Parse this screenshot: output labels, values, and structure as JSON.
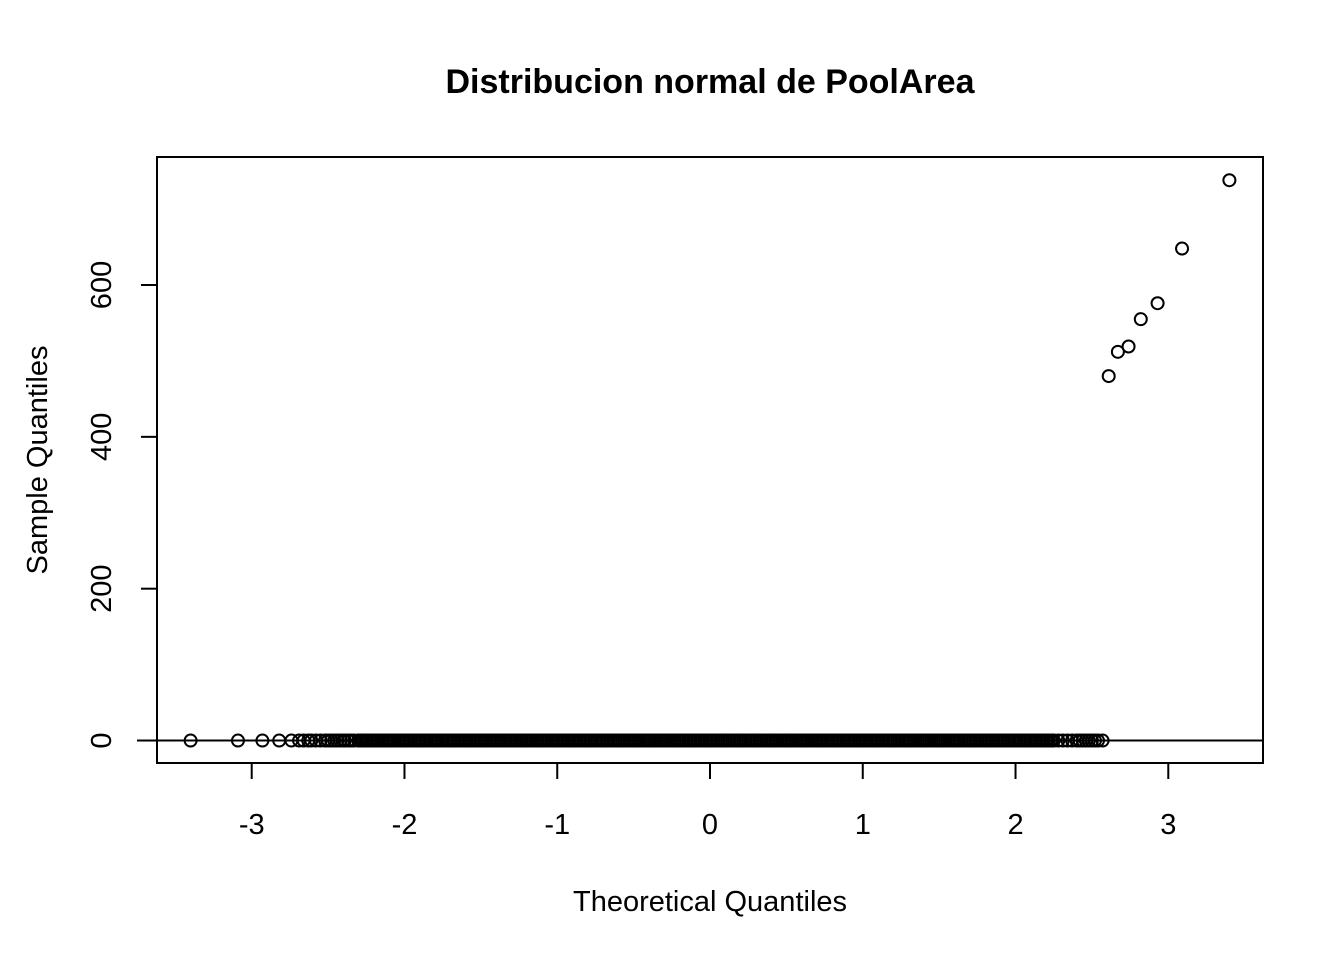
{
  "chart_data": {
    "type": "scatter",
    "title": "Distribucion normal de PoolArea",
    "xlabel": "Theoretical Quantiles",
    "ylabel": "Sample Quantiles",
    "xlim": [
      -3.62,
      3.62
    ],
    "ylim": [
      -29.6,
      768.6
    ],
    "xticks": [
      -3,
      -2,
      -1,
      0,
      1,
      2,
      3
    ],
    "yticks": [
      0,
      200,
      400,
      600
    ],
    "grid": false,
    "reference_line": {
      "intercept": 0,
      "slope": 0
    },
    "series": [
      {
        "zero_points_x": [
          -3.4,
          -3.09,
          -2.93,
          -2.82,
          -2.74,
          -2.69,
          -2.66,
          -2.63,
          -2.61,
          -2.58,
          -2.55,
          -2.52,
          -2.5,
          -2.48,
          -2.46,
          -2.44,
          -2.42,
          -2.4,
          -2.39,
          -2.37,
          -2.35,
          -2.33,
          -2.3,
          -2.25,
          -2.2,
          -2.1,
          -2.0,
          -1.9,
          -1.8,
          -1.7,
          -1.6,
          -1.5,
          -1.4,
          -1.3,
          -1.2,
          -1.1,
          -1.0,
          -0.9,
          -0.8,
          -0.7,
          -0.6,
          -0.5,
          -0.4,
          -0.3,
          -0.2,
          -0.1,
          0.0,
          0.1,
          0.2,
          0.3,
          0.4,
          0.5,
          0.6,
          0.7,
          0.8,
          0.9,
          1.0,
          1.1,
          1.2,
          1.3,
          1.4,
          1.5,
          1.6,
          1.7,
          1.8,
          1.9,
          2.0,
          2.1,
          2.2,
          2.25,
          2.28,
          2.31,
          2.34,
          2.37,
          2.4,
          2.42,
          2.44,
          2.46,
          2.48,
          2.5,
          2.52,
          2.54,
          2.57
        ],
        "points": [
          {
            "x": 2.61,
            "y": 480
          },
          {
            "x": 2.67,
            "y": 512
          },
          {
            "x": 2.74,
            "y": 519
          },
          {
            "x": 2.82,
            "y": 555
          },
          {
            "x": 2.93,
            "y": 576
          },
          {
            "x": 3.09,
            "y": 648
          },
          {
            "x": 3.4,
            "y": 738
          }
        ]
      }
    ]
  }
}
